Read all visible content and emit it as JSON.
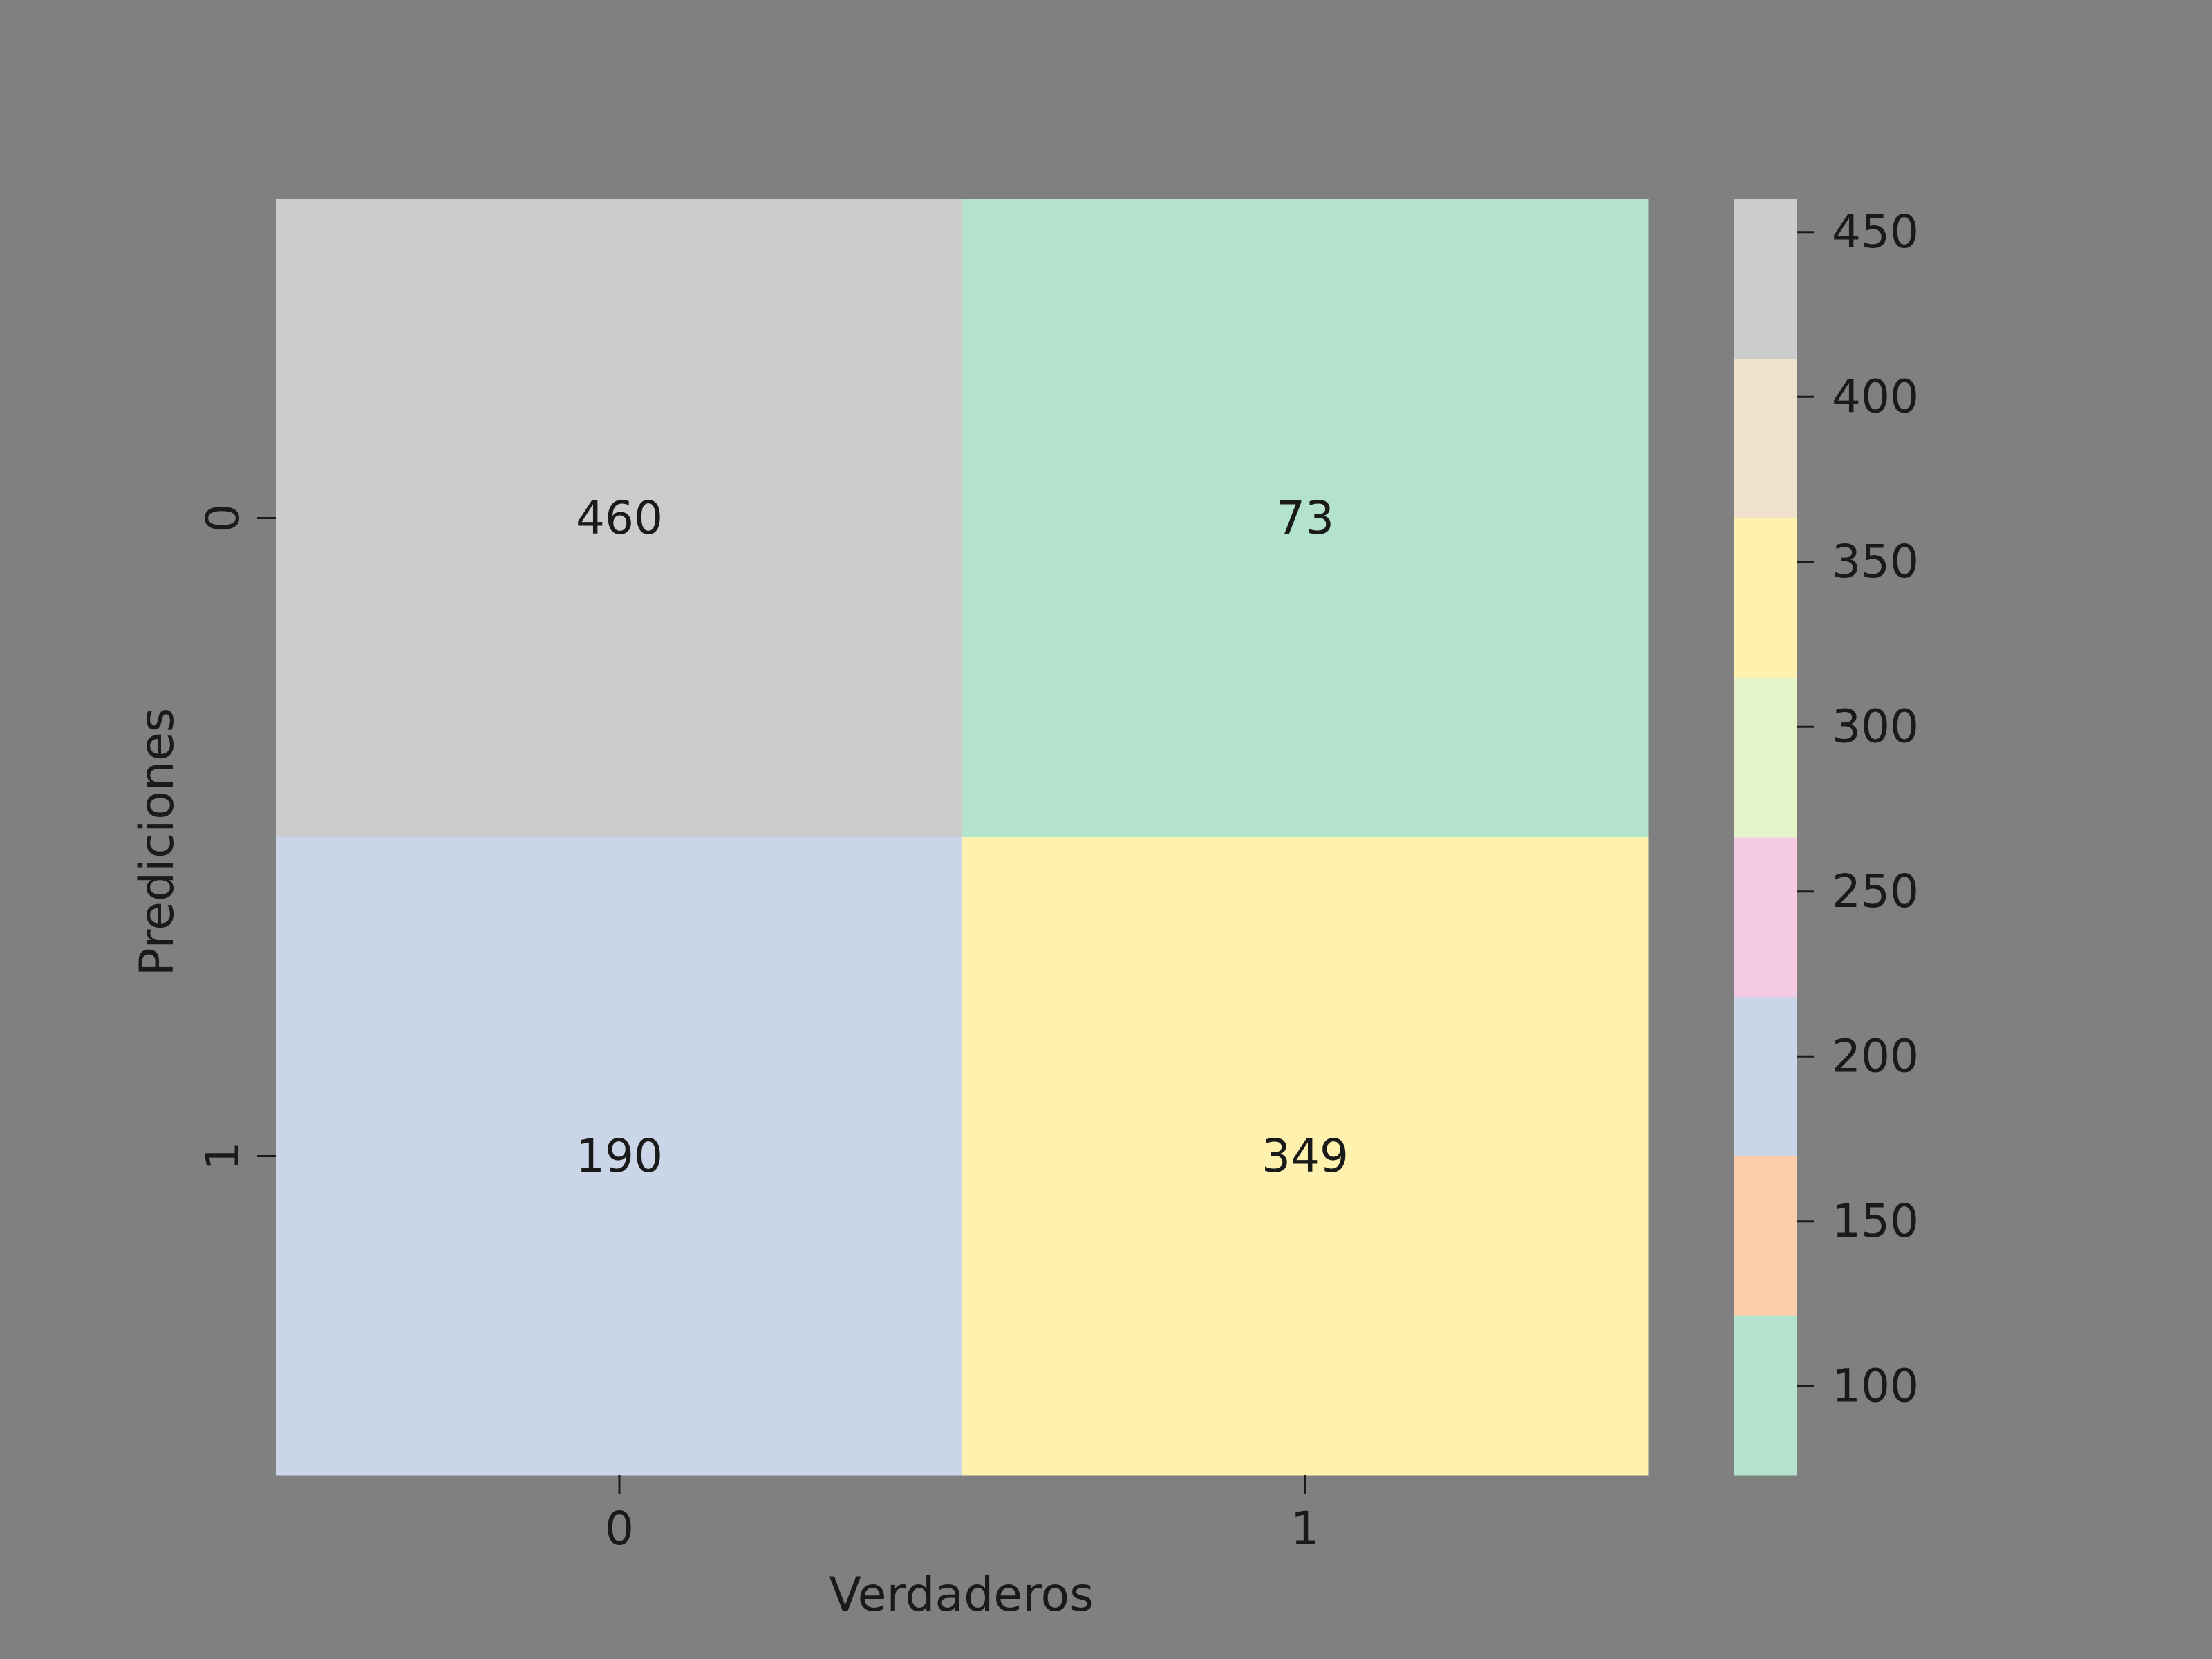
{
  "chart_data": {
    "type": "heatmap",
    "title": "",
    "xlabel": "Verdaderos",
    "ylabel": "Prediciones",
    "x_categories": [
      "0",
      "1"
    ],
    "y_categories": [
      "0",
      "1"
    ],
    "values": [
      [
        460,
        73
      ],
      [
        190,
        349
      ]
    ],
    "grid": false,
    "legend": "colorbar-right",
    "colorbar": {
      "range": [
        73,
        460
      ],
      "ticks": [
        100,
        150,
        200,
        250,
        300,
        350,
        400,
        450
      ],
      "bands": [
        {
          "from": 73.0,
          "to": 121.375,
          "color": "#b3e2cd"
        },
        {
          "from": 121.375,
          "to": 169.75,
          "color": "#fdcdac"
        },
        {
          "from": 169.75,
          "to": 218.125,
          "color": "#cbd5e8"
        },
        {
          "from": 218.125,
          "to": 266.5,
          "color": "#f4cae4"
        },
        {
          "from": 266.5,
          "to": 314.875,
          "color": "#e6f5c9"
        },
        {
          "from": 314.875,
          "to": 363.25,
          "color": "#fff2ae"
        },
        {
          "from": 363.25,
          "to": 411.625,
          "color": "#f1e2cc"
        },
        {
          "from": 411.625,
          "to": 460.0,
          "color": "#cccccc"
        }
      ]
    }
  },
  "colors": {
    "background": "#808080",
    "text": "#1a1a1a"
  }
}
